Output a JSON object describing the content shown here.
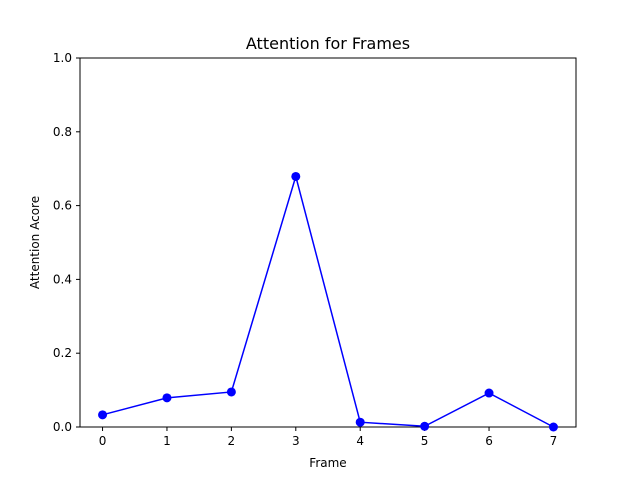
{
  "chart_data": {
    "type": "line",
    "title": "Attention for Frames",
    "xlabel": "Frame",
    "ylabel": "Attention Acore",
    "x": [
      0,
      1,
      2,
      3,
      4,
      5,
      6,
      7
    ],
    "series": [
      {
        "values": [
          0.033,
          0.079,
          0.095,
          0.679,
          0.013,
          0.002,
          0.092,
          0.0
        ],
        "color": "#0000ff",
        "marker": "circle"
      }
    ],
    "xlim": [
      -0.35,
      7.35
    ],
    "ylim": [
      0,
      1
    ],
    "xticks": [
      "0",
      "1",
      "2",
      "3",
      "4",
      "5",
      "6",
      "7"
    ],
    "yticks": [
      "0.0",
      "0.2",
      "0.4",
      "0.6",
      "0.8",
      "1.0"
    ],
    "grid": false
  }
}
